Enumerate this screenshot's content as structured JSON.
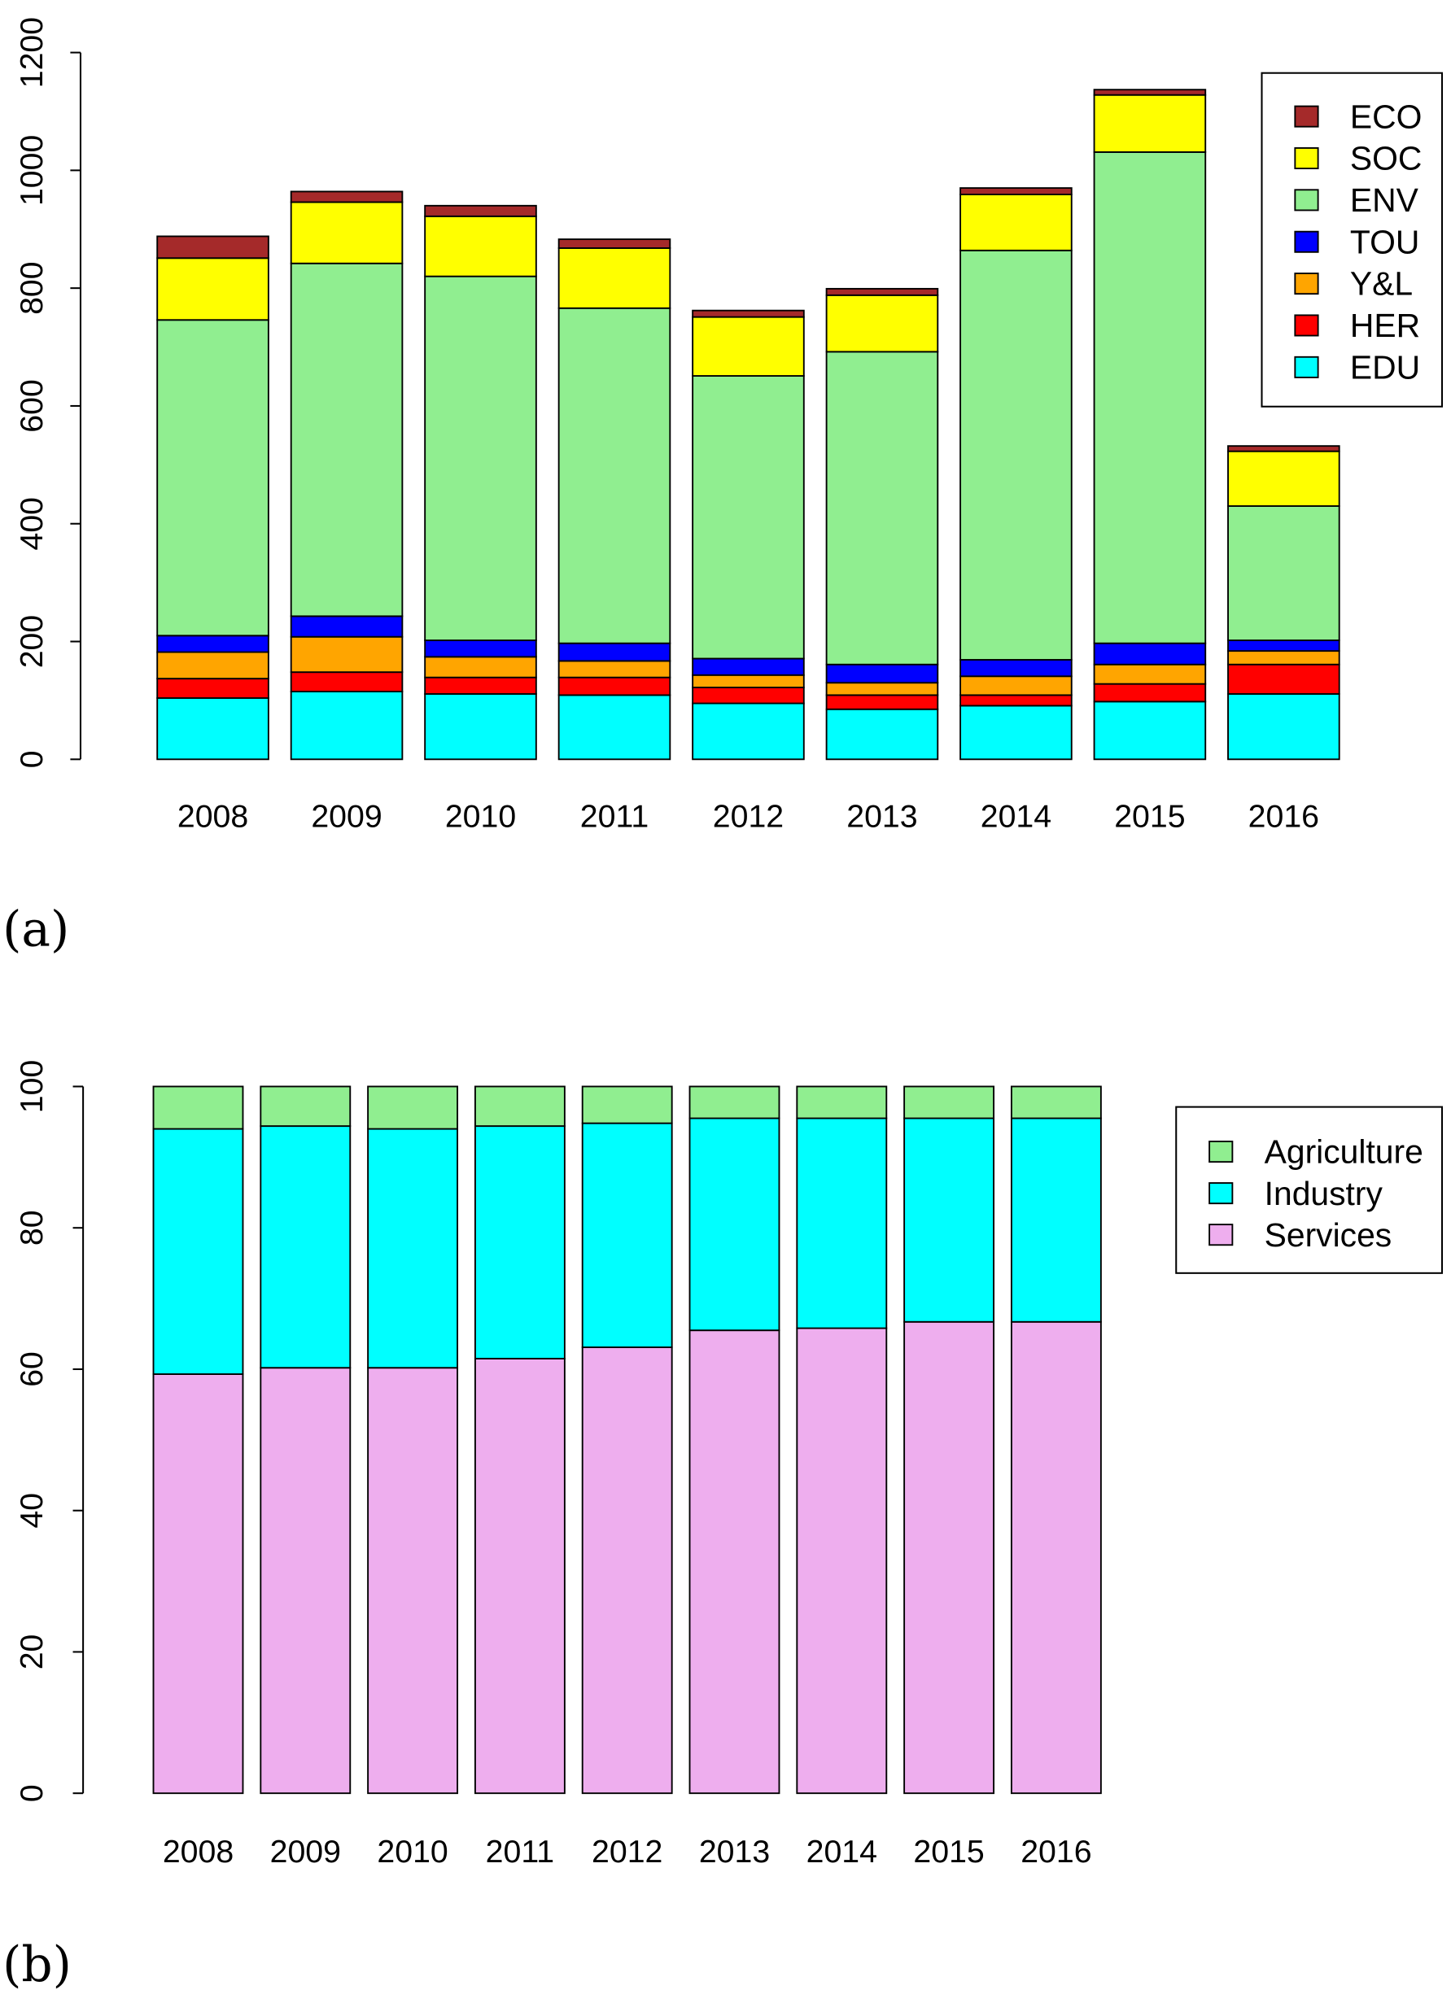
{
  "chart_data": [
    {
      "type": "bar",
      "stacked": true,
      "panel_label": "a",
      "categories": [
        "2008",
        "2009",
        "2010",
        "2011",
        "2012",
        "2013",
        "2014",
        "2015",
        "2016"
      ],
      "ylim": [
        0,
        1200
      ],
      "yticks": [
        "0",
        "200",
        "400",
        "600",
        "800",
        "1000",
        "1200"
      ],
      "legend_position": "top-right",
      "series": [
        {
          "name": "EDU",
          "color": "#00FFFF",
          "values": [
            104,
            115,
            111,
            109,
            95,
            85,
            91,
            98,
            111
          ]
        },
        {
          "name": "HER",
          "color": "#FF0000",
          "values": [
            33,
            33,
            28,
            30,
            27,
            24,
            18,
            30,
            50
          ]
        },
        {
          "name": "Y&L",
          "color": "#FFA500",
          "values": [
            45,
            60,
            35,
            28,
            21,
            21,
            32,
            33,
            23
          ]
        },
        {
          "name": "TOU",
          "color": "#0000FF",
          "values": [
            28,
            35,
            28,
            30,
            28,
            31,
            28,
            36,
            18
          ]
        },
        {
          "name": "ENV",
          "color": "#90EE90",
          "values": [
            536,
            599,
            618,
            569,
            480,
            531,
            695,
            834,
            228
          ]
        },
        {
          "name": "SOC",
          "color": "#FFFF00",
          "values": [
            105,
            104,
            102,
            102,
            100,
            96,
            95,
            97,
            93
          ]
        },
        {
          "name": "ECO",
          "color": "#A52A2A",
          "values": [
            37,
            18,
            18,
            15,
            11,
            11,
            11,
            9,
            9
          ]
        }
      ]
    },
    {
      "type": "bar",
      "stacked": true,
      "panel_label": "b",
      "categories": [
        "2008",
        "2009",
        "2010",
        "2011",
        "2012",
        "2013",
        "2014",
        "2015",
        "2016"
      ],
      "ylim": [
        0,
        100
      ],
      "yticks": [
        "0",
        "20",
        "40",
        "60",
        "80",
        "100"
      ],
      "legend_position": "top-right",
      "series": [
        {
          "name": "Services",
          "color": "#EEAEEE",
          "values": [
            59.3,
            60.2,
            60.2,
            61.5,
            63.1,
            65.5,
            65.8,
            66.7,
            66.7
          ]
        },
        {
          "name": "Industry",
          "color": "#00FFFF",
          "values": [
            34.7,
            34.2,
            33.8,
            32.9,
            31.7,
            30.0,
            29.7,
            28.8,
            28.8
          ]
        },
        {
          "name": "Agriculture",
          "color": "#90EE90",
          "values": [
            6.0,
            5.6,
            6.0,
            5.6,
            5.2,
            4.5,
            4.5,
            4.5,
            4.5
          ]
        }
      ]
    }
  ]
}
